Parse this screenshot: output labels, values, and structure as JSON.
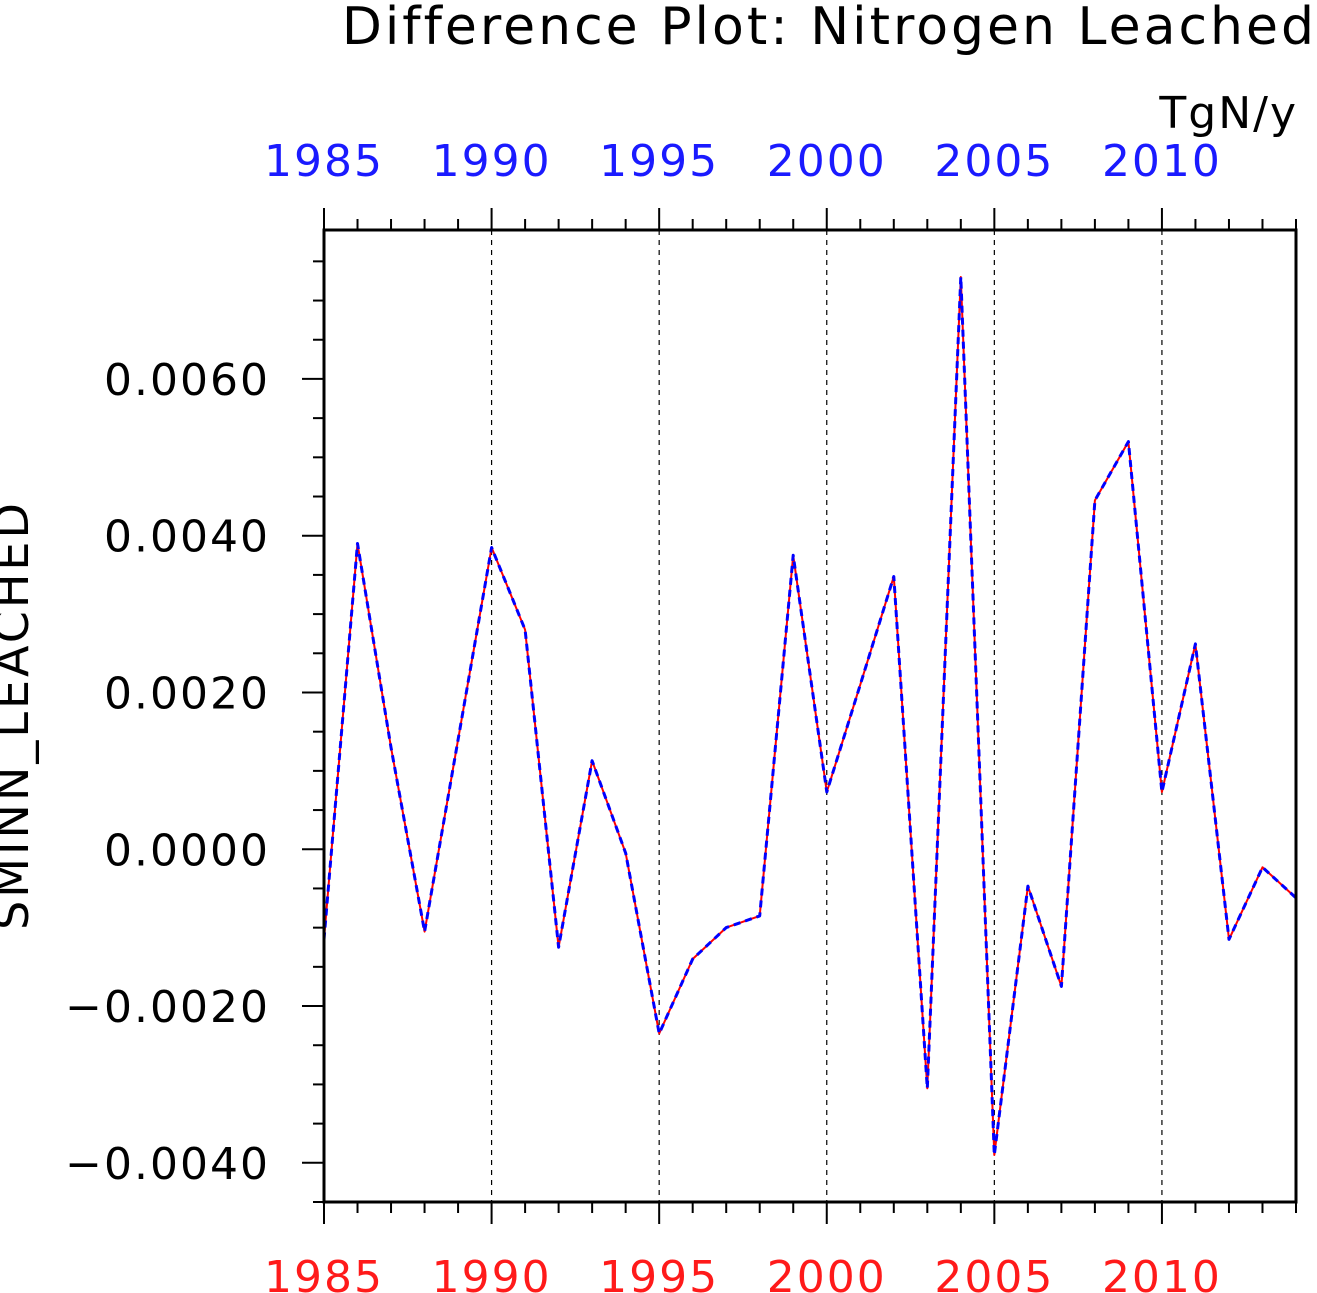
{
  "chart_data": {
    "type": "line",
    "title": "Difference Plot: Nitrogen Leached",
    "units": "TgN/y",
    "ylabel": "SMINN_LEACHED",
    "xlim": [
      1985,
      2014
    ],
    "ylim": [
      -0.0045,
      0.0079
    ],
    "x_ticks": [
      1985,
      1990,
      1995,
      2000,
      2005,
      2010
    ],
    "x_tick_labels_top": [
      "1985",
      "1990",
      "1995",
      "2000",
      "2005",
      "2010"
    ],
    "x_tick_labels_bottom": [
      "1985",
      "1990",
      "1995",
      "2000",
      "2005",
      "2010"
    ],
    "y_ticks": [
      -0.004,
      -0.002,
      0.0,
      0.002,
      0.004,
      0.006
    ],
    "y_tick_labels": [
      "−0.0040",
      "−0.0020",
      "0.0000",
      "0.0020",
      "0.0040",
      "0.0060"
    ],
    "vertical_grid": "dashed at major x ticks",
    "x": [
      1985,
      1986,
      1987,
      1988,
      1989,
      1990,
      1991,
      1992,
      1993,
      1994,
      1995,
      1996,
      1997,
      1998,
      1999,
      2000,
      2001,
      2002,
      2003,
      2004,
      2005,
      2006,
      2007,
      2008,
      2009,
      2010,
      2011,
      2012,
      2013,
      2014
    ],
    "series": [
      {
        "color": "#ff0000",
        "style": "solid",
        "values": [
          -0.00115,
          0.0039,
          0.0013,
          -0.00105,
          0.0014,
          0.00385,
          0.0028,
          -0.00125,
          0.00113,
          -5e-05,
          -0.00235,
          -0.0014,
          -0.001,
          -0.00085,
          0.00375,
          0.00073,
          0.0021,
          0.00348,
          -0.00305,
          0.0073,
          -0.0039,
          -0.00047,
          -0.00175,
          0.00445,
          0.0052,
          0.00073,
          0.00262,
          -0.00115,
          -0.00023,
          -0.00062
        ]
      },
      {
        "color": "#0000ff",
        "style": "dashed",
        "values": [
          -0.00115,
          0.0039,
          0.0013,
          -0.00105,
          0.0014,
          0.00385,
          0.0028,
          -0.00125,
          0.00113,
          -5e-05,
          -0.00235,
          -0.0014,
          -0.001,
          -0.00085,
          0.00375,
          0.00073,
          0.0021,
          0.00348,
          -0.00305,
          0.0073,
          -0.0039,
          -0.00047,
          -0.00175,
          0.00445,
          0.0052,
          0.00073,
          0.00262,
          -0.00115,
          -0.00023,
          -0.00062
        ]
      }
    ]
  }
}
